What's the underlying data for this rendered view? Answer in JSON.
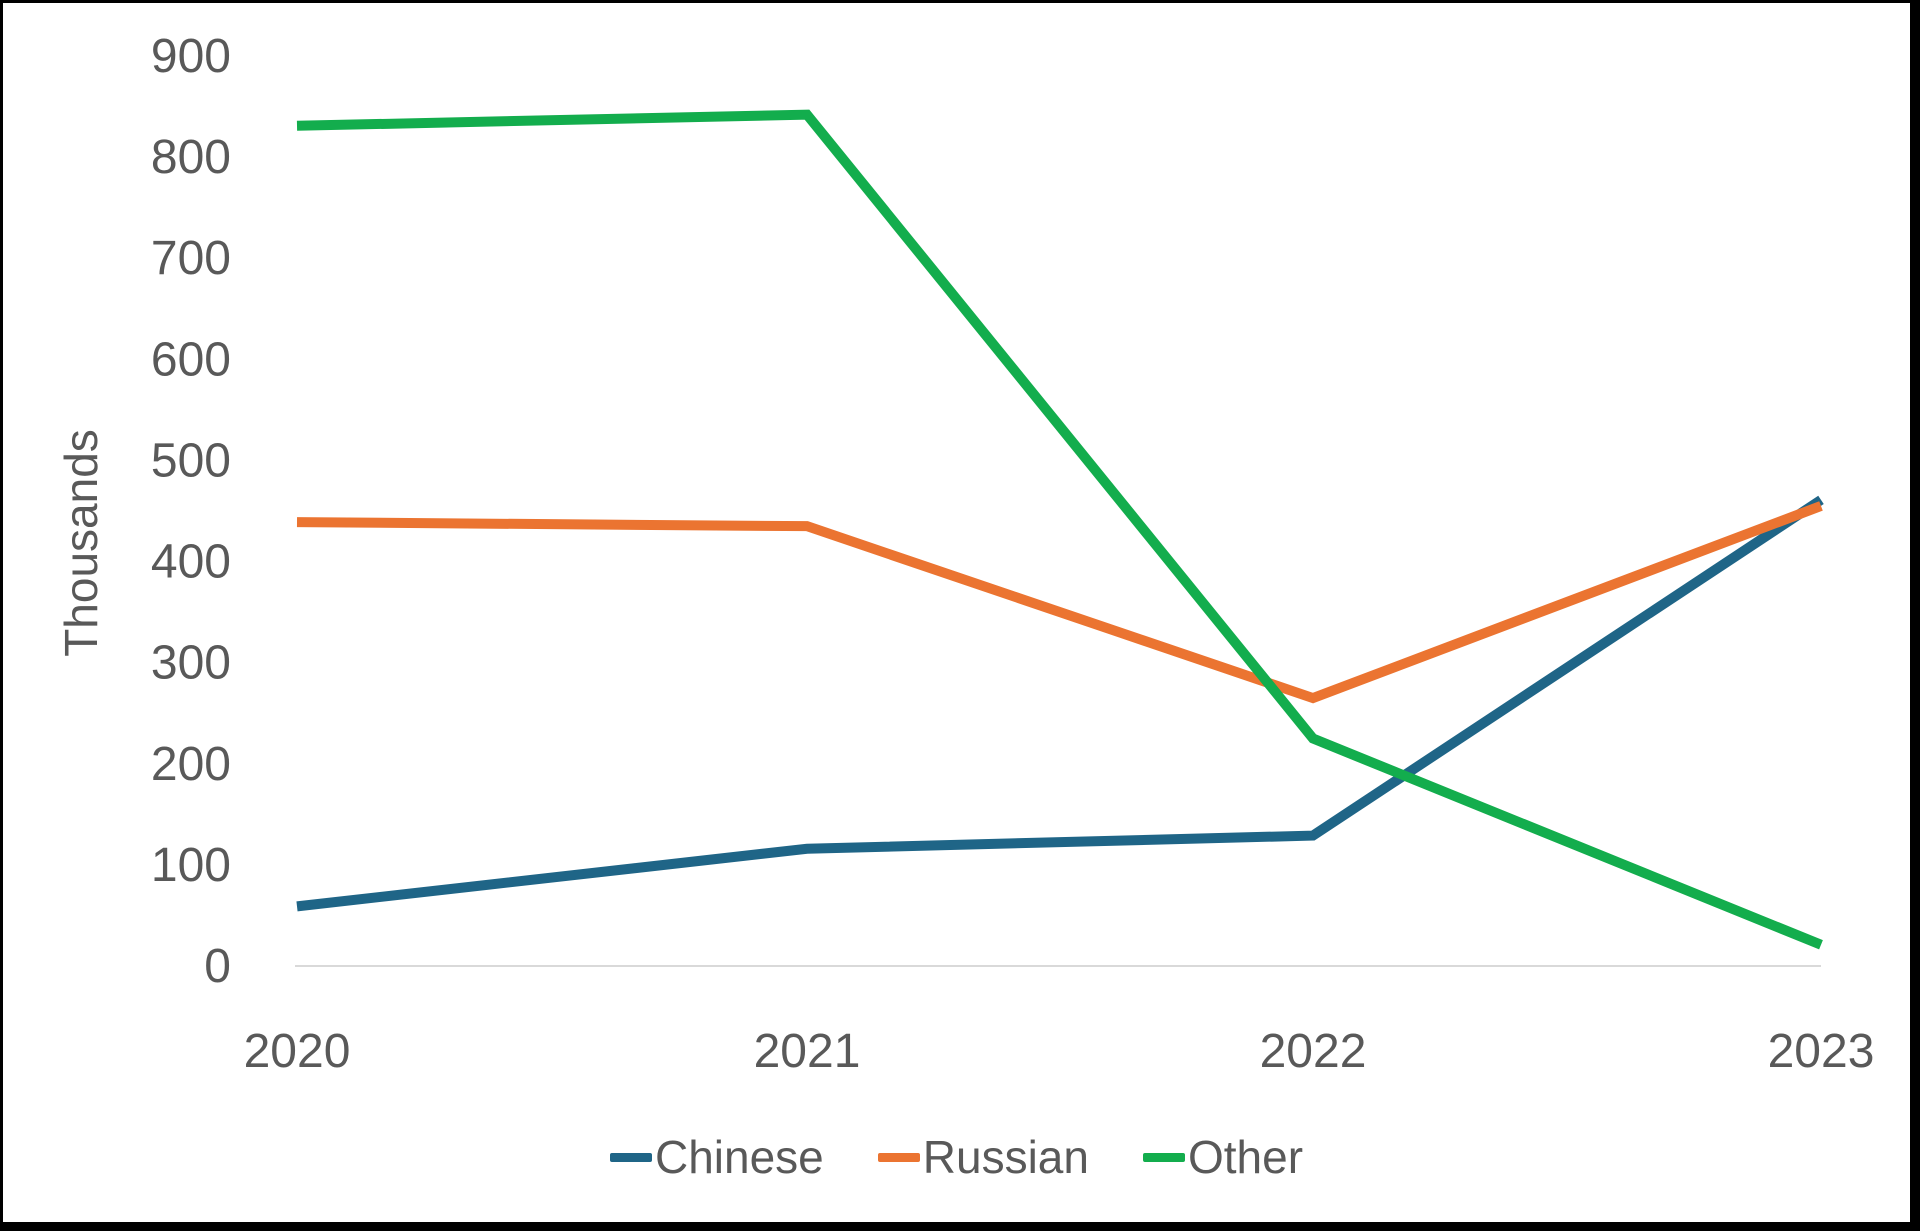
{
  "chart_data": {
    "type": "line",
    "title": "",
    "categories": [
      "2020",
      "2021",
      "2022",
      "2023"
    ],
    "series": [
      {
        "name": "Chinese",
        "color": "#1F6587",
        "values": [
          58,
          115,
          128,
          460
        ]
      },
      {
        "name": "Russian",
        "color": "#EB7431",
        "values": [
          438,
          434,
          264,
          454
        ]
      },
      {
        "name": "Other",
        "color": "#13AD4D",
        "values": [
          830,
          841,
          224,
          20
        ]
      }
    ],
    "xlabel": "",
    "ylabel": "Thousands",
    "ylim": [
      0,
      900
    ],
    "yticks": [
      0,
      100,
      200,
      300,
      400,
      500,
      600,
      700,
      800,
      900
    ],
    "grid": false,
    "legend_position": "bottom",
    "colors": {
      "axis_text": "#595959",
      "axis_line": "#D9D9D9",
      "background": "#FFFFFF",
      "frame_border": "#000000"
    }
  }
}
